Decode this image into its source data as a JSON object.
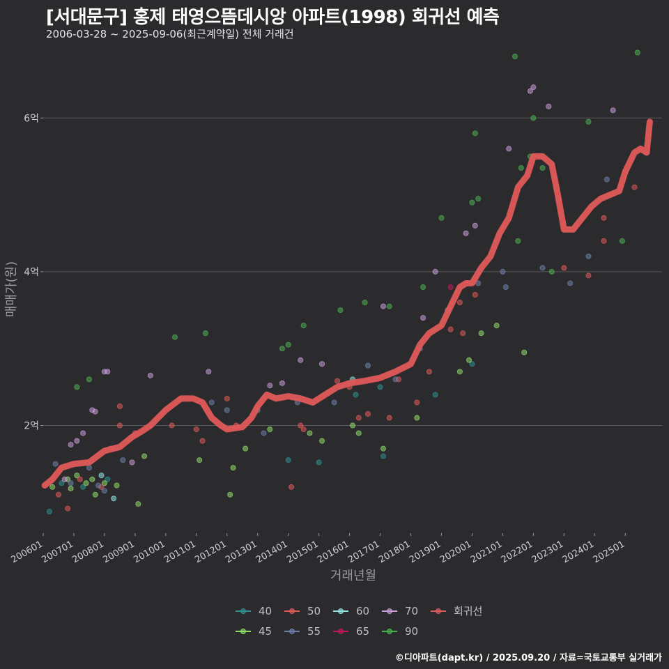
{
  "header": {
    "title": "[서대문구] 홍제 태영으뜸데시앙 아파트(1998) 회귀선 예측",
    "subtitle": "2006-03-28 ~ 2025-09-06(최근계약일) 전체 거래건"
  },
  "footer": {
    "credit": "©디아파트(dapt.kr) / 2025.09.20 / 자료=국토교통부 실거래가"
  },
  "colors": {
    "background": "#2b2b2d",
    "grid": "#5a5a5c",
    "regression": "#e05a5a",
    "s40": "#2f8f8f",
    "s45": "#8fd96a",
    "s50": "#e05a5a",
    "s55": "#6e7fa8",
    "s60": "#8fe0e0",
    "s65": "#c2185b",
    "s70": "#c79bd8",
    "s90": "#4caf50"
  },
  "chart_data": {
    "type": "scatter",
    "title": "[서대문구] 홍제 태영으뜸데시앙 아파트(1998) 회귀선 예측",
    "xlabel": "거래년월",
    "ylabel": "매매가(원)",
    "xlim": [
      2006.0,
      2026.2
    ],
    "ylim": [
      0.6,
      6.9
    ],
    "yunit": "억",
    "x_ticks": [
      {
        "value": 2006.0,
        "label": "200601"
      },
      {
        "value": 2007.0,
        "label": "200701"
      },
      {
        "value": 2008.0,
        "label": "200801"
      },
      {
        "value": 2009.0,
        "label": "200901"
      },
      {
        "value": 2010.0,
        "label": "201001"
      },
      {
        "value": 2011.0,
        "label": "201101"
      },
      {
        "value": 2012.0,
        "label": "201201"
      },
      {
        "value": 2013.0,
        "label": "201301"
      },
      {
        "value": 2014.0,
        "label": "201401"
      },
      {
        "value": 2015.0,
        "label": "201501"
      },
      {
        "value": 2016.0,
        "label": "201601"
      },
      {
        "value": 2017.0,
        "label": "201701"
      },
      {
        "value": 2018.0,
        "label": "201801"
      },
      {
        "value": 2019.0,
        "label": "201901"
      },
      {
        "value": 2020.0,
        "label": "202001"
      },
      {
        "value": 2021.0,
        "label": "202101"
      },
      {
        "value": 2022.0,
        "label": "202201"
      },
      {
        "value": 2023.0,
        "label": "202301"
      },
      {
        "value": 2024.0,
        "label": "202401"
      },
      {
        "value": 2025.0,
        "label": "202501"
      }
    ],
    "y_ticks": [
      {
        "value": 2,
        "label": "2억"
      },
      {
        "value": 4,
        "label": "4억"
      },
      {
        "value": 6,
        "label": "6억"
      }
    ],
    "legend": [
      {
        "key": "40",
        "label": "40",
        "color": "#2f8f8f"
      },
      {
        "key": "50",
        "label": "50",
        "color": "#e05a5a"
      },
      {
        "key": "60",
        "label": "60",
        "color": "#8fe0e0"
      },
      {
        "key": "70",
        "label": "70",
        "color": "#c79bd8"
      },
      {
        "key": "reg",
        "label": "회귀선",
        "color": "#e05a5a"
      },
      {
        "key": "45",
        "label": "45",
        "color": "#8fd96a"
      },
      {
        "key": "55",
        "label": "55",
        "color": "#6e7fa8"
      },
      {
        "key": "65",
        "label": "65",
        "color": "#c2185b"
      },
      {
        "key": "90",
        "label": "90",
        "color": "#4caf50"
      }
    ],
    "series": [
      {
        "name": "40",
        "color": "#2f8f8f",
        "points": [
          [
            2006.2,
            0.88
          ],
          [
            2006.6,
            1.25
          ],
          [
            2007.3,
            1.2
          ],
          [
            2008.1,
            1.3
          ],
          [
            2014.0,
            1.55
          ],
          [
            2015.0,
            1.52
          ],
          [
            2016.2,
            2.4
          ],
          [
            2017.0,
            2.5
          ],
          [
            2017.1,
            1.6
          ],
          [
            2018.8,
            2.4
          ],
          [
            2020.0,
            2.8
          ]
        ]
      },
      {
        "name": "45",
        "color": "#8fd96a",
        "points": [
          [
            2006.3,
            1.2
          ],
          [
            2006.8,
            1.3
          ],
          [
            2006.9,
            1.18
          ],
          [
            2007.1,
            1.35
          ],
          [
            2007.4,
            1.25
          ],
          [
            2007.6,
            1.3
          ],
          [
            2007.7,
            1.1
          ],
          [
            2008.0,
            1.25
          ],
          [
            2008.4,
            1.22
          ],
          [
            2009.1,
            0.98
          ],
          [
            2009.3,
            1.6
          ],
          [
            2011.1,
            1.55
          ],
          [
            2012.1,
            1.1
          ],
          [
            2012.2,
            1.45
          ],
          [
            2012.6,
            1.7
          ],
          [
            2013.4,
            1.95
          ],
          [
            2014.7,
            1.9
          ],
          [
            2015.1,
            1.8
          ],
          [
            2016.1,
            2.0
          ],
          [
            2016.3,
            1.9
          ],
          [
            2017.1,
            1.7
          ],
          [
            2018.2,
            2.1
          ],
          [
            2019.6,
            2.7
          ],
          [
            2019.9,
            2.85
          ],
          [
            2020.3,
            3.2
          ],
          [
            2020.8,
            3.3
          ],
          [
            2021.7,
            2.95
          ]
        ]
      },
      {
        "name": "50",
        "color": "#e05a5a",
        "points": [
          [
            2006.5,
            1.1
          ],
          [
            2006.8,
            0.92
          ],
          [
            2007.2,
            1.3
          ],
          [
            2007.9,
            1.2
          ],
          [
            2008.2,
            1.7
          ],
          [
            2008.5,
            2.0
          ],
          [
            2008.5,
            2.25
          ],
          [
            2009.0,
            1.9
          ],
          [
            2010.2,
            2.0
          ],
          [
            2011.0,
            1.95
          ],
          [
            2011.2,
            1.8
          ],
          [
            2012.0,
            2.35
          ],
          [
            2012.3,
            2.0
          ],
          [
            2014.1,
            1.2
          ],
          [
            2014.4,
            2.0
          ],
          [
            2014.5,
            1.95
          ],
          [
            2015.6,
            2.58
          ],
          [
            2016.0,
            2.5
          ],
          [
            2016.3,
            2.1
          ],
          [
            2016.6,
            2.15
          ],
          [
            2017.3,
            2.1
          ],
          [
            2017.6,
            2.6
          ],
          [
            2018.2,
            2.3
          ],
          [
            2018.6,
            2.7
          ],
          [
            2019.3,
            3.25
          ],
          [
            2019.6,
            3.6
          ],
          [
            2019.7,
            3.2
          ],
          [
            2020.1,
            3.7
          ],
          [
            2023.0,
            4.05
          ],
          [
            2023.8,
            3.95
          ],
          [
            2024.3,
            4.7
          ],
          [
            2024.3,
            4.4
          ],
          [
            2025.3,
            5.1
          ]
        ]
      },
      {
        "name": "55",
        "color": "#6e7fa8",
        "points": [
          [
            2006.4,
            1.5
          ],
          [
            2006.9,
            1.25
          ],
          [
            2007.5,
            1.45
          ],
          [
            2007.8,
            1.22
          ],
          [
            2008.0,
            1.15
          ],
          [
            2008.6,
            1.55
          ],
          [
            2011.5,
            2.3
          ],
          [
            2012.0,
            2.2
          ],
          [
            2013.0,
            2.2
          ],
          [
            2013.2,
            1.9
          ],
          [
            2014.3,
            2.3
          ],
          [
            2015.5,
            2.3
          ],
          [
            2016.6,
            2.78
          ],
          [
            2017.5,
            2.6
          ],
          [
            2018.3,
            3.0
          ],
          [
            2019.2,
            3.5
          ],
          [
            2020.2,
            3.85
          ],
          [
            2021.0,
            4.0
          ],
          [
            2021.1,
            3.8
          ],
          [
            2022.3,
            4.05
          ],
          [
            2023.2,
            3.85
          ],
          [
            2023.8,
            4.2
          ],
          [
            2024.4,
            5.2
          ]
        ]
      },
      {
        "name": "60",
        "color": "#8fe0e0",
        "points": [
          [
            2007.9,
            1.35
          ],
          [
            2008.3,
            1.05
          ],
          [
            2016.1,
            2.6
          ]
        ]
      },
      {
        "name": "65",
        "color": "#c2185b",
        "points": [
          [
            2016.9,
            2.6
          ],
          [
            2019.3,
            3.8
          ]
        ]
      },
      {
        "name": "70",
        "color": "#c79bd8",
        "points": [
          [
            2006.7,
            1.3
          ],
          [
            2006.9,
            1.75
          ],
          [
            2007.1,
            1.8
          ],
          [
            2007.3,
            1.9
          ],
          [
            2007.6,
            2.2
          ],
          [
            2007.7,
            2.18
          ],
          [
            2008.0,
            2.7
          ],
          [
            2008.1,
            2.7
          ],
          [
            2008.9,
            1.52
          ],
          [
            2009.5,
            2.65
          ],
          [
            2011.4,
            2.7
          ],
          [
            2013.4,
            2.52
          ],
          [
            2013.8,
            2.55
          ],
          [
            2014.4,
            2.85
          ],
          [
            2015.1,
            2.8
          ],
          [
            2017.1,
            3.55
          ],
          [
            2018.4,
            3.4
          ],
          [
            2018.8,
            4.0
          ],
          [
            2019.8,
            4.5
          ],
          [
            2020.1,
            4.6
          ],
          [
            2021.2,
            5.6
          ],
          [
            2021.9,
            6.35
          ],
          [
            2022.0,
            6.4
          ],
          [
            2022.5,
            6.15
          ],
          [
            2024.6,
            6.1
          ]
        ]
      },
      {
        "name": "90",
        "color": "#4caf50",
        "points": [
          [
            2007.1,
            2.5
          ],
          [
            2007.5,
            2.6
          ],
          [
            2010.3,
            3.15
          ],
          [
            2011.3,
            3.2
          ],
          [
            2013.8,
            3.0
          ],
          [
            2014.0,
            3.05
          ],
          [
            2014.5,
            3.3
          ],
          [
            2015.7,
            3.5
          ],
          [
            2016.5,
            3.6
          ],
          [
            2017.3,
            3.55
          ],
          [
            2018.4,
            3.8
          ],
          [
            2019.0,
            4.7
          ],
          [
            2020.0,
            4.9
          ],
          [
            2020.1,
            5.8
          ],
          [
            2020.2,
            4.95
          ],
          [
            2021.6,
            5.35
          ],
          [
            2021.9,
            5.5
          ],
          [
            2022.0,
            6.0
          ],
          [
            2022.3,
            5.35
          ],
          [
            2021.4,
            6.8
          ],
          [
            2021.5,
            4.4
          ],
          [
            2022.6,
            4.0
          ],
          [
            2024.9,
            4.4
          ],
          [
            2025.4,
            6.85
          ],
          [
            2023.8,
            5.95
          ]
        ]
      }
    ],
    "regression": [
      [
        2006.05,
        1.22
      ],
      [
        2006.3,
        1.3
      ],
      [
        2006.6,
        1.45
      ],
      [
        2007.0,
        1.5
      ],
      [
        2007.5,
        1.52
      ],
      [
        2008.0,
        1.67
      ],
      [
        2008.5,
        1.72
      ],
      [
        2008.9,
        1.85
      ],
      [
        2009.2,
        1.92
      ],
      [
        2009.5,
        2.0
      ],
      [
        2010.0,
        2.2
      ],
      [
        2010.5,
        2.35
      ],
      [
        2010.9,
        2.35
      ],
      [
        2011.2,
        2.3
      ],
      [
        2011.5,
        2.1
      ],
      [
        2011.8,
        2.0
      ],
      [
        2012.0,
        1.95
      ],
      [
        2012.5,
        1.98
      ],
      [
        2012.8,
        2.1
      ],
      [
        2013.0,
        2.25
      ],
      [
        2013.3,
        2.4
      ],
      [
        2013.6,
        2.35
      ],
      [
        2014.0,
        2.38
      ],
      [
        2014.4,
        2.35
      ],
      [
        2014.8,
        2.3
      ],
      [
        2015.2,
        2.4
      ],
      [
        2015.6,
        2.5
      ],
      [
        2016.0,
        2.55
      ],
      [
        2016.5,
        2.58
      ],
      [
        2017.0,
        2.62
      ],
      [
        2017.5,
        2.7
      ],
      [
        2018.0,
        2.8
      ],
      [
        2018.3,
        3.05
      ],
      [
        2018.6,
        3.2
      ],
      [
        2019.0,
        3.3
      ],
      [
        2019.3,
        3.55
      ],
      [
        2019.6,
        3.8
      ],
      [
        2019.8,
        3.85
      ],
      [
        2020.0,
        3.85
      ],
      [
        2020.3,
        4.05
      ],
      [
        2020.6,
        4.2
      ],
      [
        2020.9,
        4.5
      ],
      [
        2021.2,
        4.7
      ],
      [
        2021.5,
        5.1
      ],
      [
        2021.8,
        5.25
      ],
      [
        2022.0,
        5.5
      ],
      [
        2022.3,
        5.5
      ],
      [
        2022.6,
        5.4
      ],
      [
        2022.8,
        5.0
      ],
      [
        2023.0,
        4.55
      ],
      [
        2023.3,
        4.55
      ],
      [
        2023.6,
        4.7
      ],
      [
        2023.9,
        4.85
      ],
      [
        2024.2,
        4.95
      ],
      [
        2024.5,
        5.0
      ],
      [
        2024.8,
        5.05
      ],
      [
        2025.0,
        5.3
      ],
      [
        2025.3,
        5.55
      ],
      [
        2025.5,
        5.6
      ],
      [
        2025.7,
        5.55
      ],
      [
        2025.8,
        5.95
      ]
    ]
  }
}
